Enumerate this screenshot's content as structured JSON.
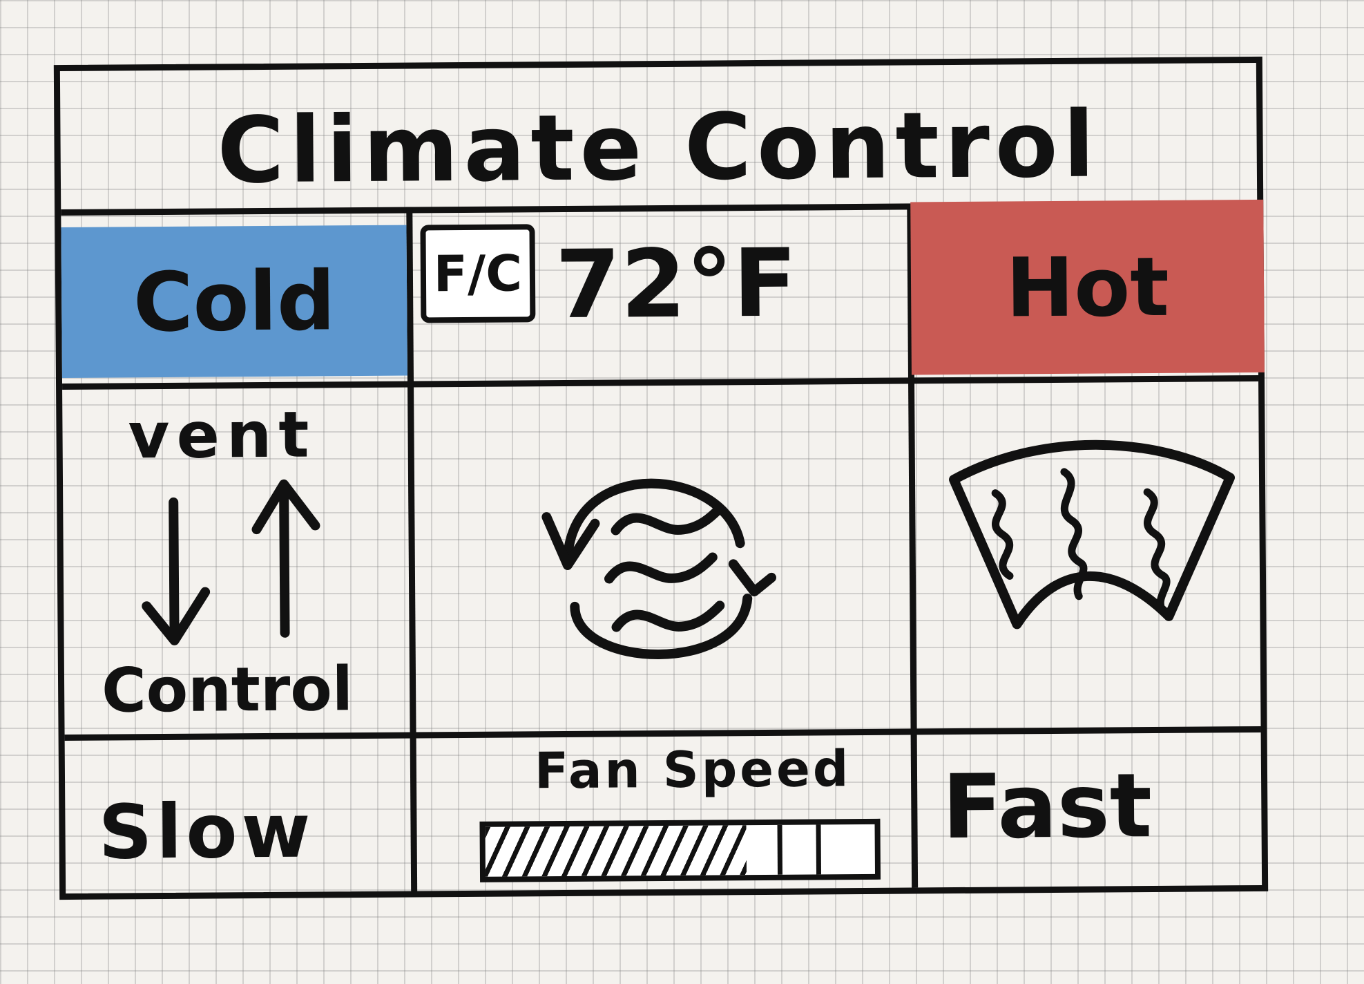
{
  "header": {
    "title": "Climate Control"
  },
  "temperature": {
    "cold_label": "Cold",
    "hot_label": "Hot",
    "unit_toggle_label": "F/C",
    "display": "72°F",
    "cold_color": "#5d97cf",
    "hot_color": "#c95a54"
  },
  "vent": {
    "label_top": "vent",
    "label_bottom": "Control",
    "down_icon": "arrow-down-icon",
    "up_icon": "arrow-up-icon"
  },
  "modes": {
    "recirculate_icon": "recirculate-air-icon",
    "defrost_icon": "windshield-defrost-icon"
  },
  "fan": {
    "label": "Fan Speed",
    "slow_label": "Slow",
    "fast_label": "Fast",
    "level_fraction": 0.67
  }
}
